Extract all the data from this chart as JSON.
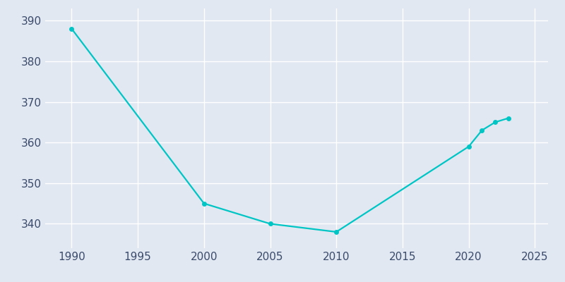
{
  "years": [
    1990,
    2000,
    2005,
    2010,
    2020,
    2021,
    2022,
    2023
  ],
  "population": [
    388,
    345,
    340,
    338,
    359,
    363,
    365,
    366
  ],
  "line_color": "#00C5C5",
  "marker_color": "#00C5C5",
  "background_color": "#E2E8F2",
  "grid_color": "#FFFFFF",
  "text_color": "#3A4A6B",
  "xlim": [
    1988,
    2026
  ],
  "ylim": [
    334,
    393
  ],
  "yticks": [
    340,
    350,
    360,
    370,
    380,
    390
  ],
  "xticks": [
    1990,
    1995,
    2000,
    2005,
    2010,
    2015,
    2020,
    2025
  ],
  "linewidth": 1.6,
  "markersize": 4,
  "figsize": [
    8.0,
    4.0
  ],
  "dpi": 100
}
